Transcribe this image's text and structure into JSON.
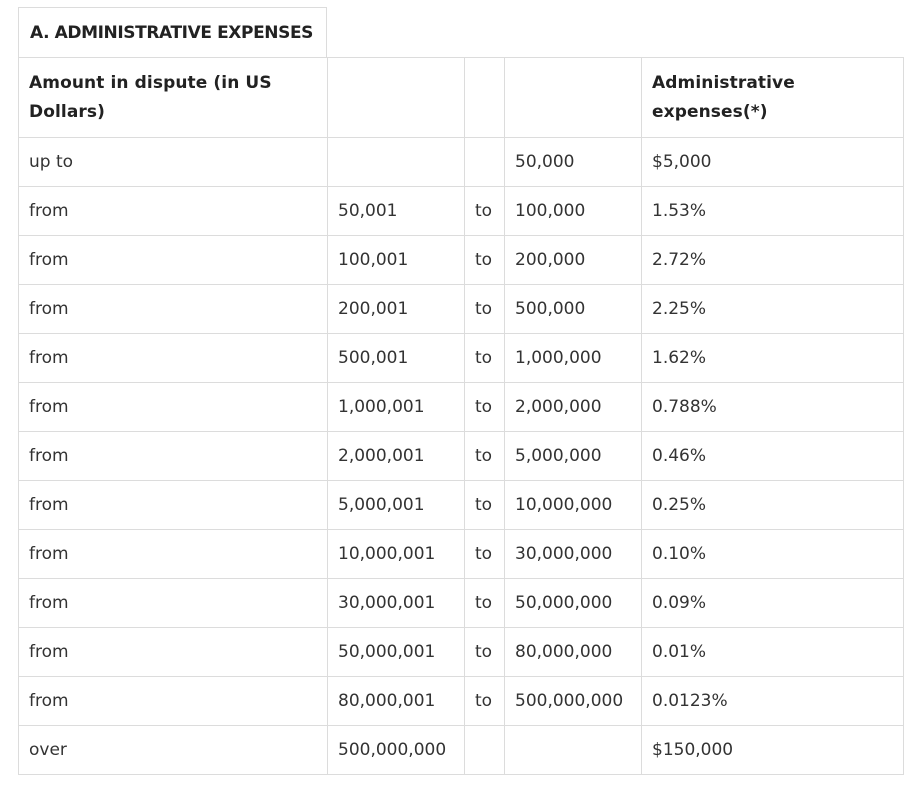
{
  "section_title": "A. ADMINISTRATIVE EXPENSES",
  "table": {
    "headers": [
      "Amount in dispute (in US Dollars)",
      "",
      "",
      "",
      "Administrative expenses(*)"
    ],
    "rows": [
      [
        "up to",
        "",
        "",
        "50,000",
        "$5,000"
      ],
      [
        "from",
        "50,001",
        "to",
        "100,000",
        "1.53%"
      ],
      [
        "from",
        "100,001",
        "to",
        "200,000",
        "2.72%"
      ],
      [
        "from",
        "200,001",
        "to",
        "500,000",
        "2.25%"
      ],
      [
        "from",
        "500,001",
        "to",
        "1,000,000",
        "1.62%"
      ],
      [
        "from",
        "1,000,001",
        "to",
        "2,000,000",
        "0.788%"
      ],
      [
        "from",
        "2,000,001",
        "to",
        "5,000,000",
        "0.46%"
      ],
      [
        "from",
        "5,000,001",
        "to",
        "10,000,000",
        "0.25%"
      ],
      [
        "from",
        "10,000,001",
        "to",
        "30,000,000",
        "0.10%"
      ],
      [
        "from",
        "30,000,001",
        "to",
        "50,000,000",
        "0.09%"
      ],
      [
        "from",
        "50,000,001",
        "to",
        "80,000,000",
        "0.01%"
      ],
      [
        "from",
        "80,000,001",
        "to",
        "500,000,000",
        "0.0123%"
      ],
      [
        "over",
        "500,000,000",
        "",
        "",
        "$150,000"
      ]
    ]
  },
  "colors": {
    "border": "#dcdcdc",
    "text": "#333333",
    "heading_text": "#222222",
    "background": "#ffffff"
  }
}
